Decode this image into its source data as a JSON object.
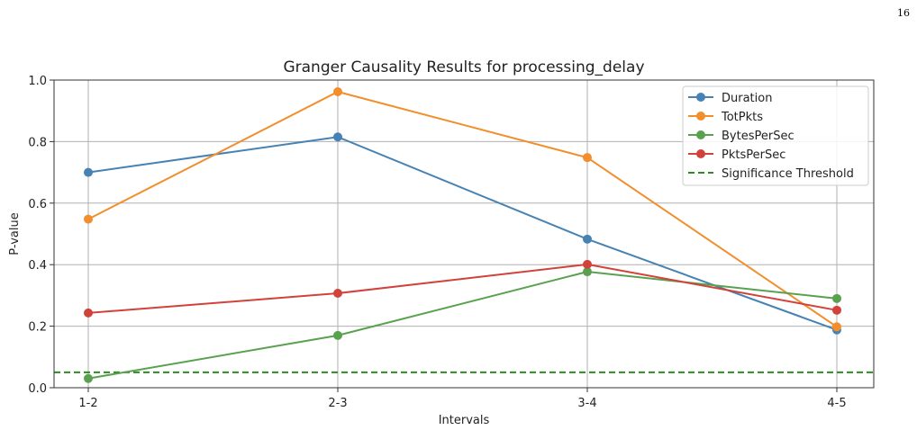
{
  "page_number": "16",
  "chart_data": {
    "type": "line",
    "title": "Granger Causality Results for processing_delay",
    "xlabel": "Intervals",
    "ylabel": "P-value",
    "categories": [
      "1-2",
      "2-3",
      "3-4",
      "4-5"
    ],
    "ylim": [
      0.0,
      1.0
    ],
    "yticks": [
      0.0,
      0.2,
      0.4,
      0.6,
      0.8,
      1.0
    ],
    "ytick_labels": [
      "0.0",
      "0.2",
      "0.4",
      "0.6",
      "0.8",
      "1.0"
    ],
    "grid": true,
    "legend_position": "top-right",
    "series": [
      {
        "name": "Duration",
        "color": "#4682b4",
        "values": [
          0.7,
          0.815,
          0.483,
          0.188
        ]
      },
      {
        "name": "TotPkts",
        "color": "#f28e2b",
        "values": [
          0.548,
          0.962,
          0.748,
          0.198
        ]
      },
      {
        "name": "BytesPerSec",
        "color": "#59a14f",
        "values": [
          0.03,
          0.17,
          0.377,
          0.29
        ]
      },
      {
        "name": "PktsPerSec",
        "color": "#d1423a",
        "values": [
          0.243,
          0.307,
          0.401,
          0.252
        ]
      }
    ],
    "threshold": {
      "name": "Significance Threshold",
      "value": 0.05,
      "color": "#2e8b22"
    }
  }
}
